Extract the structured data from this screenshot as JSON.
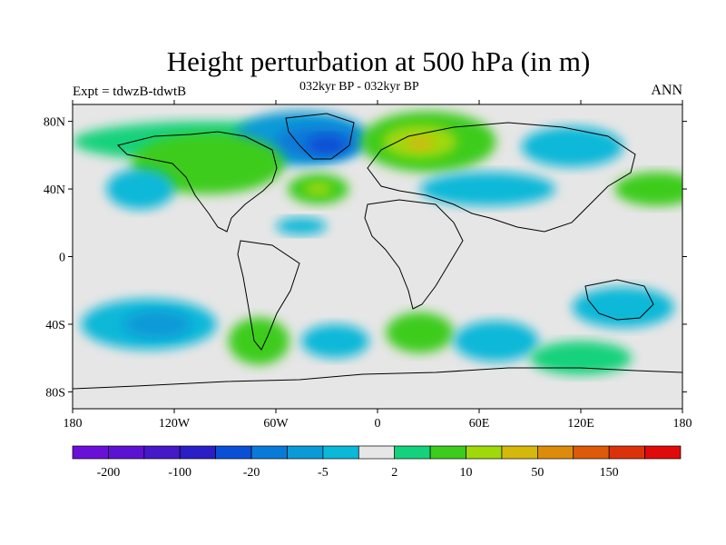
{
  "title": "Height perturbation at 500 hPa (in m)",
  "subtitle": "032kyr BP - 032kyr BP",
  "experiment": "Expt = tdwzB-tdwtB",
  "season": "ANN",
  "axes": {
    "lon_ticks": [
      {
        "value": -180,
        "label": "180"
      },
      {
        "value": -120,
        "label": "120W"
      },
      {
        "value": -60,
        "label": "60W"
      },
      {
        "value": 0,
        "label": "0"
      },
      {
        "value": 60,
        "label": "60E"
      },
      {
        "value": 120,
        "label": "120E"
      },
      {
        "value": 180,
        "label": "180"
      }
    ],
    "lat_ticks": [
      {
        "value": 80,
        "label": "80N"
      },
      {
        "value": 40,
        "label": "40N"
      },
      {
        "value": 0,
        "label": "0"
      },
      {
        "value": -40,
        "label": "40S"
      },
      {
        "value": -80,
        "label": "80S"
      }
    ],
    "lon_range": [
      -180,
      180
    ],
    "lat_range": [
      -90,
      90
    ]
  },
  "colorbar": {
    "colors": [
      "#6a0fd8",
      "#5c12d2",
      "#4518c8",
      "#2a1ec6",
      "#0a50d6",
      "#0a7ad8",
      "#0a9ad8",
      "#0ab8d8",
      "#e6e6e6",
      "#14d27c",
      "#3ccc1c",
      "#a0d80a",
      "#d4b80a",
      "#dc8c0a",
      "#dc5a0a",
      "#dc320a",
      "#e00a0a"
    ],
    "labels": [
      {
        "boundary": 1,
        "text": "-200"
      },
      {
        "boundary": 3,
        "text": "-100"
      },
      {
        "boundary": 5,
        "text": "-20"
      },
      {
        "boundary": 7,
        "text": "-5"
      },
      {
        "boundary": 9,
        "text": "2"
      },
      {
        "boundary": 11,
        "text": "10"
      },
      {
        "boundary": 13,
        "text": "50"
      },
      {
        "boundary": 15,
        "text": "150"
      }
    ]
  },
  "anomaly_regions": [
    {
      "name": "arctic-canada-band",
      "lon": -100,
      "lat": 68,
      "rlon": 80,
      "rlat": 12,
      "level": 9
    },
    {
      "name": "greenland-low-outer",
      "lon": -45,
      "lat": 70,
      "rlon": 40,
      "rlat": 16,
      "level": 6
    },
    {
      "name": "greenland-low-inner",
      "lon": -35,
      "lat": 68,
      "rlon": 25,
      "rlat": 10,
      "level": 5
    },
    {
      "name": "greenland-low-core",
      "lon": -30,
      "lat": 66,
      "rlon": 12,
      "rlat": 6,
      "level": 4
    },
    {
      "name": "north-america-positive",
      "lon": -100,
      "lat": 55,
      "rlon": 45,
      "rlat": 18,
      "level": 10
    },
    {
      "name": "siberia-positive",
      "lon": 30,
      "lat": 68,
      "rlon": 40,
      "rlat": 18,
      "level": 10
    },
    {
      "name": "siberia-positive-core",
      "lon": 25,
      "lat": 68,
      "rlon": 22,
      "rlat": 10,
      "level": 11
    },
    {
      "name": "siberia-positive-peak",
      "lon": 25,
      "lat": 67,
      "rlon": 8,
      "rlat": 4,
      "level": 12
    },
    {
      "name": "pacific-low",
      "lon": -140,
      "lat": 40,
      "rlon": 20,
      "rlat": 12,
      "level": 7
    },
    {
      "name": "atlantic-high",
      "lon": -35,
      "lat": 40,
      "rlon": 18,
      "rlat": 9,
      "level": 10
    },
    {
      "name": "atlantic-high-core",
      "lon": -35,
      "lat": 40,
      "rlon": 8,
      "rlat": 4,
      "level": 11
    },
    {
      "name": "asia-low",
      "lon": 65,
      "lat": 40,
      "rlon": 40,
      "rlat": 10,
      "level": 7
    },
    {
      "name": "east-asia-low",
      "lon": 115,
      "lat": 65,
      "rlon": 30,
      "rlat": 12,
      "level": 7
    },
    {
      "name": "north-pacific-high",
      "lon": 165,
      "lat": 40,
      "rlon": 25,
      "rlat": 10,
      "level": 10
    },
    {
      "name": "tropical-atlantic-low",
      "lon": -45,
      "lat": 18,
      "rlon": 15,
      "rlat": 5,
      "level": 7
    },
    {
      "name": "south-pacific-low",
      "lon": -135,
      "lat": -40,
      "rlon": 40,
      "rlat": 15,
      "level": 7
    },
    {
      "name": "south-pacific-low-core",
      "lon": -130,
      "lat": -40,
      "rlon": 20,
      "rlat": 8,
      "level": 6
    },
    {
      "name": "south-america-high",
      "lon": -70,
      "lat": -50,
      "rlon": 18,
      "rlat": 14,
      "level": 10
    },
    {
      "name": "south-atlantic-low",
      "lon": -25,
      "lat": -50,
      "rlon": 20,
      "rlat": 10,
      "level": 7
    },
    {
      "name": "south-africa-high",
      "lon": 25,
      "lat": -45,
      "rlon": 20,
      "rlat": 12,
      "level": 10
    },
    {
      "name": "indian-ocean-low",
      "lon": 70,
      "lat": -50,
      "rlon": 25,
      "rlat": 12,
      "level": 7
    },
    {
      "name": "australia-low",
      "lon": 145,
      "lat": -30,
      "rlon": 30,
      "rlat": 12,
      "level": 7
    },
    {
      "name": "southern-ocean-high",
      "lon": 120,
      "lat": -60,
      "rlon": 30,
      "rlat": 10,
      "level": 9
    }
  ]
}
